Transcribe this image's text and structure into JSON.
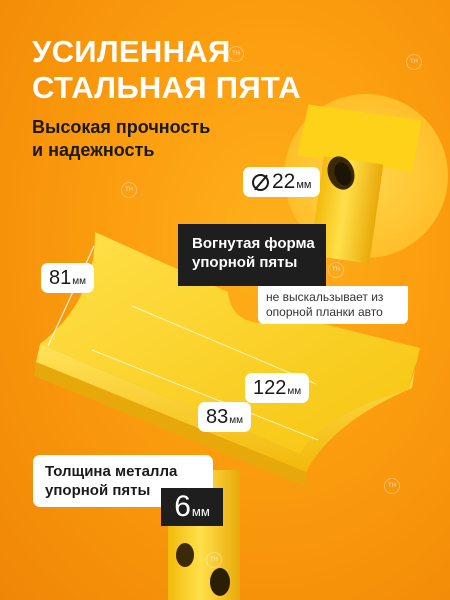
{
  "headline": {
    "line1": "УСИЛЕННАЯ",
    "line2": "СТАЛЬНАЯ ПЯТА"
  },
  "subheadline": {
    "line1": "Высокая прочность",
    "line2": "и надежность"
  },
  "diameter": {
    "value": "22",
    "unit": "мм",
    "icon": "diameter-icon"
  },
  "dimensions": {
    "width": {
      "value": "81",
      "unit": "мм"
    },
    "length_outer": {
      "value": "122",
      "unit": "мм"
    },
    "length_inner": {
      "value": "83",
      "unit": "мм"
    }
  },
  "shape_callout": {
    "title_line1": "Вогнутая форма",
    "title_line2": "упорной пяты",
    "note_line1": "не выскальзывает из",
    "note_line2": "опорной планки авто"
  },
  "thickness": {
    "label_line1": "Толщина металла",
    "label_line2": "упорной пяты",
    "value": "6",
    "unit": "мм"
  },
  "watermark": {
    "logo_text": "TH",
    "icon": "brand-logo-icon"
  },
  "colors": {
    "background": "#fb9c0e",
    "steel_yellow": "#ffd21a",
    "dark_label": "#1e1e1e"
  }
}
